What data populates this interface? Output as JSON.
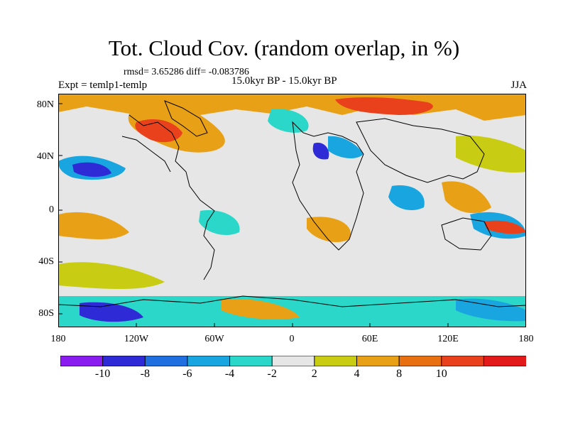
{
  "title": "Tot. Cloud Cov. (random overlap, in %)",
  "stats": "rmsd= 3.65286 diff= -0.083786",
  "experiment": "Expt = temlp1-temlp",
  "period": "15.0kyr BP - 15.0kyr BP",
  "season": "JJA",
  "lat_ticks": [
    "80N",
    "40N",
    "0",
    "40S",
    "80S"
  ],
  "lon_ticks": [
    "180",
    "120W",
    "60W",
    "0",
    "60E",
    "120E",
    "180"
  ],
  "colorbar": {
    "labels": [
      "-10",
      "-8",
      "-6",
      "-4",
      "-2",
      "2",
      "4",
      "8",
      "10"
    ],
    "colors": [
      "#8a1cf0",
      "#2d2ad6",
      "#1f6fe0",
      "#19a6e0",
      "#2ad7c8",
      "#e6e6e6",
      "#c8cc12",
      "#e8a116",
      "#e87010",
      "#e8411c",
      "#e31a1a"
    ]
  }
}
